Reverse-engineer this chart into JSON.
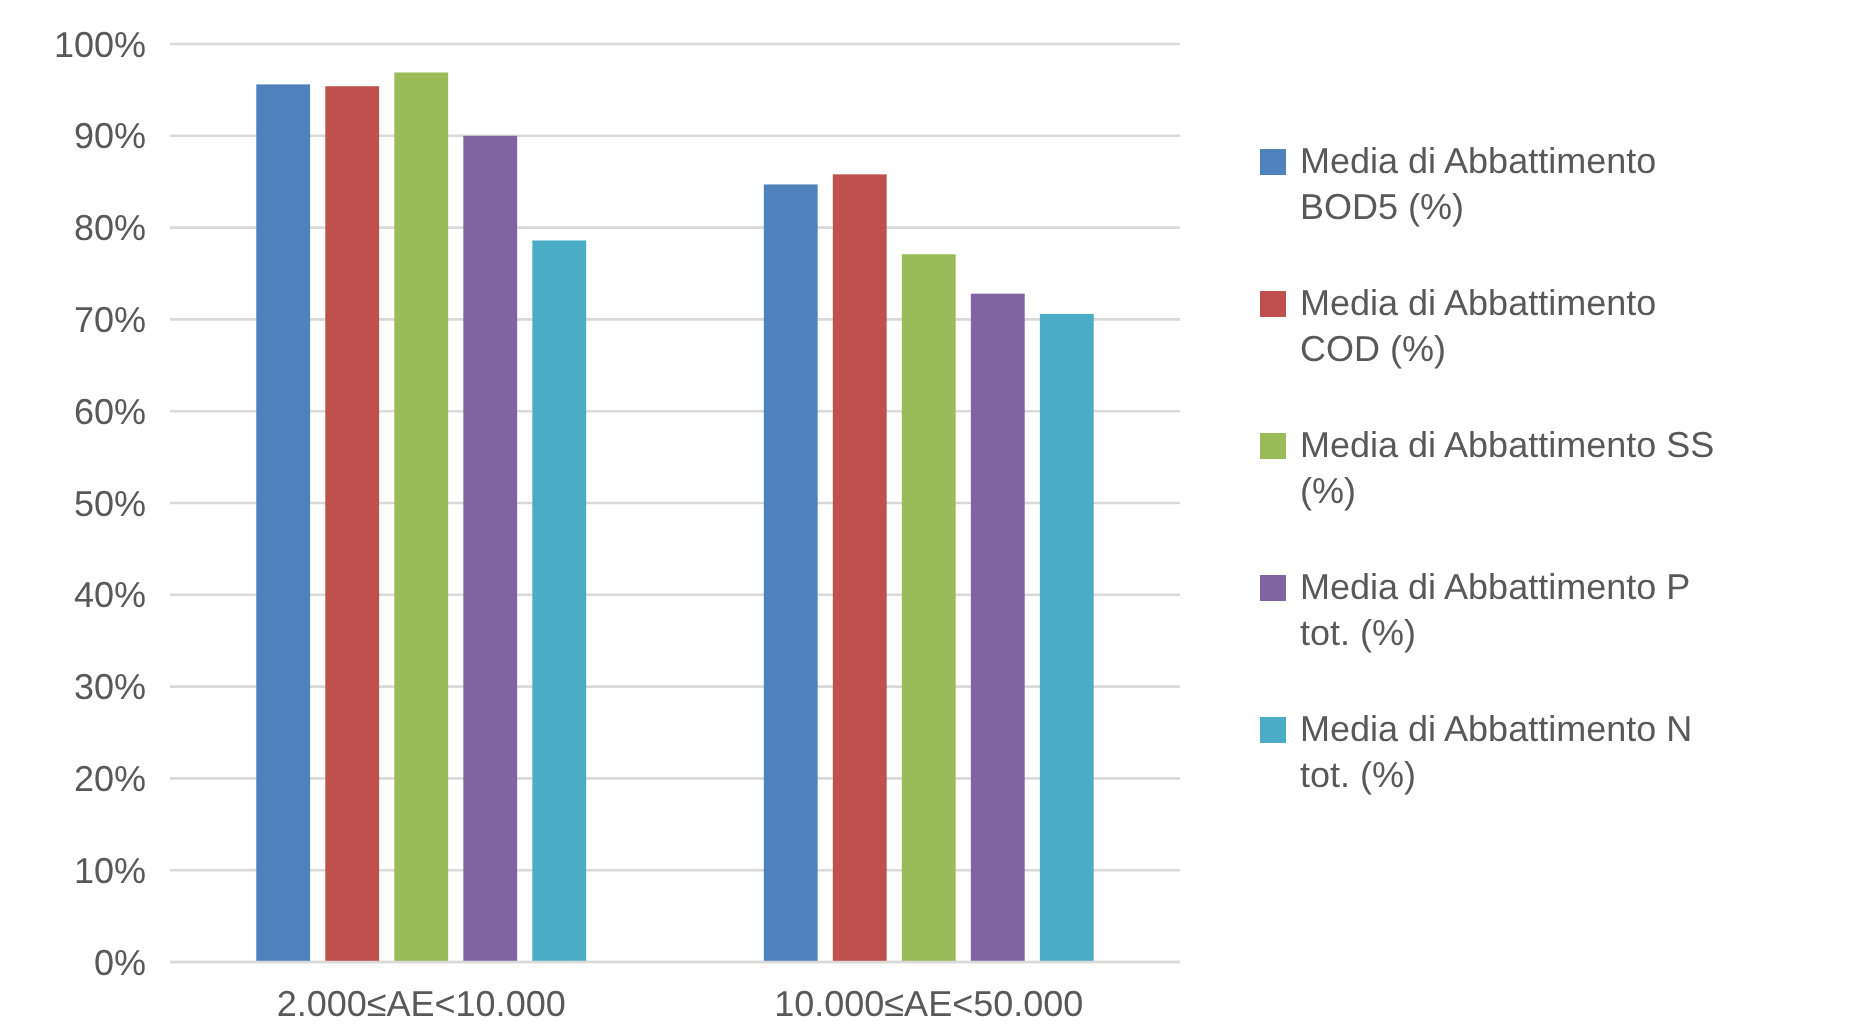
{
  "chart_data": {
    "type": "bar",
    "categories": [
      "2.000≤AE<10.000",
      "10.000≤AE<50.000"
    ],
    "series": [
      {
        "name": "Media di Abbattimento BOD5 (%)",
        "color": "#4f81bd",
        "values": [
          95.6,
          84.7
        ]
      },
      {
        "name": "Media di Abbattimento COD (%)",
        "color": "#c0504d",
        "values": [
          95.4,
          85.8
        ]
      },
      {
        "name": "Media di Abbattimento SS (%)",
        "color": "#9bbb59",
        "values": [
          96.9,
          77.1
        ]
      },
      {
        "name": "Media di Abbattimento P tot. (%)",
        "color": "#8064a2",
        "values": [
          90.0,
          72.8
        ]
      },
      {
        "name": "Media di Abbattimento N tot. (%)",
        "color": "#4bacc6",
        "values": [
          78.6,
          70.6
        ]
      }
    ],
    "ylim": [
      0,
      100
    ],
    "yticks": [
      {
        "value": 0,
        "label": "0%"
      },
      {
        "value": 10,
        "label": "10%"
      },
      {
        "value": 20,
        "label": "20%"
      },
      {
        "value": 30,
        "label": "30%"
      },
      {
        "value": 40,
        "label": "40%"
      },
      {
        "value": 50,
        "label": "50%"
      },
      {
        "value": 60,
        "label": "60%"
      },
      {
        "value": 70,
        "label": "70%"
      },
      {
        "value": 80,
        "label": "80%"
      },
      {
        "value": 90,
        "label": "90%"
      },
      {
        "value": 100,
        "label": "100%"
      }
    ],
    "grid": "y",
    "legend": "right"
  }
}
